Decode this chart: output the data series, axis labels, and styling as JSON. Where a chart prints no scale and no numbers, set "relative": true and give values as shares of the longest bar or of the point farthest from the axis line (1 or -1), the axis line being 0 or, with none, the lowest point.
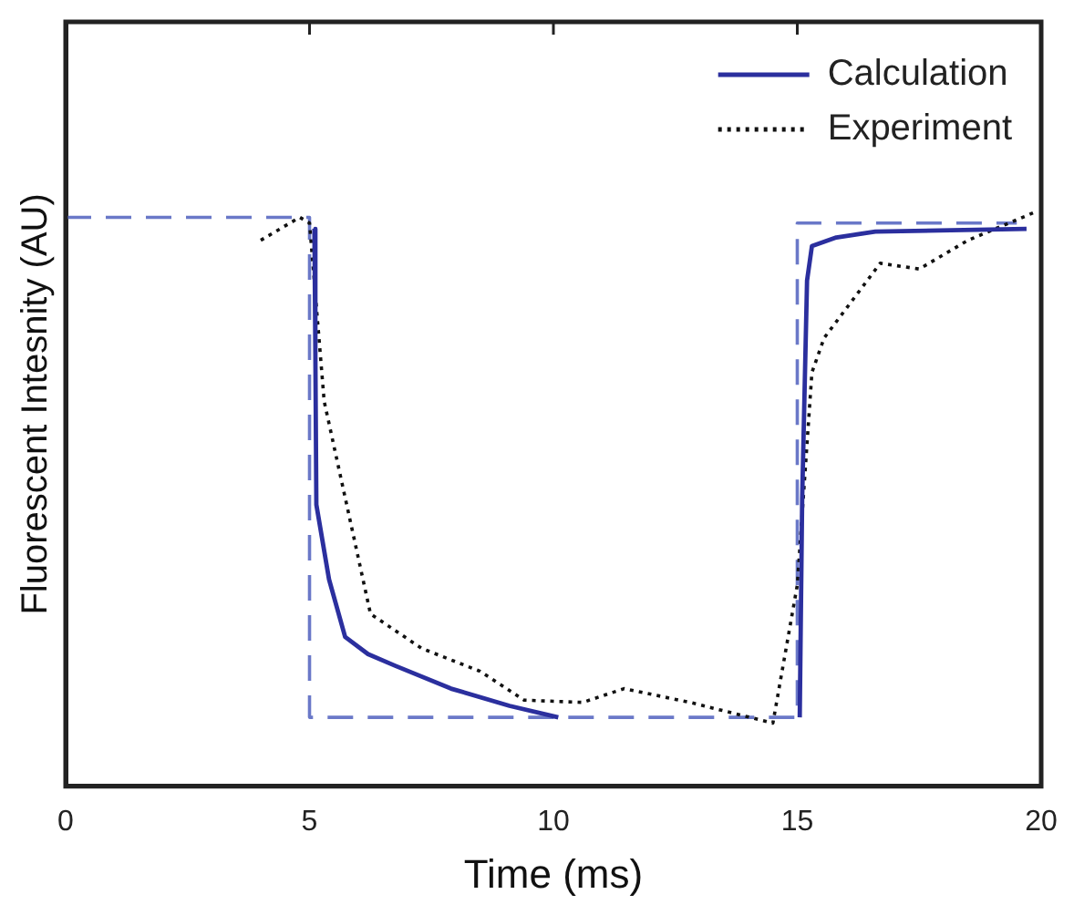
{
  "chart_data": {
    "type": "line",
    "relative": true,
    "xlabel": "Time (ms)",
    "ylabel": "Fluorescent Intesnity (AU)",
    "xlim": [
      0,
      20
    ],
    "xticks": [
      0,
      5,
      10,
      15,
      20
    ],
    "tick_labels": "x",
    "grid": false,
    "legend": "top right",
    "marker": "none",
    "series": [
      {
        "name": "Calculation",
        "color": "#2b2f9e",
        "line_style": "solid",
        "x": [
          5.1,
          5.12,
          5.14,
          5.4,
          5.73,
          6.2,
          6.75,
          7.9,
          9.1,
          10.1,
          null,
          15.05,
          15.1,
          15.2,
          15.3,
          15.8,
          16.6,
          19.7
        ],
        "values": [
          0.97,
          0.75,
          0.49,
          0.36,
          0.26,
          0.23,
          0.21,
          0.17,
          0.14,
          0.12,
          null,
          0.12,
          0.5,
          0.88,
          0.94,
          0.955,
          0.965,
          0.97
        ]
      },
      {
        "name": "Experiment",
        "color": "#111111",
        "line_style": "dotted",
        "x": [
          4.0,
          4.8,
          5.0,
          5.3,
          6.25,
          7.3,
          8.5,
          9.4,
          10.6,
          11.45,
          12.8,
          14.5,
          15.0,
          15.3,
          15.55,
          16.7,
          17.5,
          18.5,
          19.9
        ],
        "values": [
          0.95,
          0.99,
          0.98,
          0.67,
          0.3,
          0.24,
          0.2,
          0.15,
          0.146,
          0.17,
          0.146,
          0.11,
          0.35,
          0.72,
          0.78,
          0.91,
          0.9,
          0.95,
          1
        ]
      },
      {
        "color": "#6a78c8",
        "line_style": "dashed",
        "x": [
          0,
          5,
          5,
          15,
          15,
          19.5
        ],
        "values": [
          0.99,
          0.99,
          0.12,
          0.12,
          0.98,
          0.98
        ]
      }
    ]
  }
}
